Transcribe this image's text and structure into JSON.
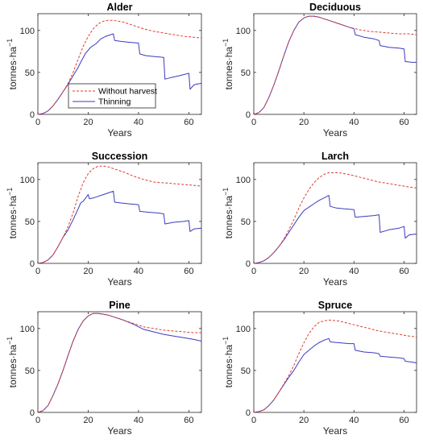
{
  "figure": {
    "colors": {
      "without_harvest": "#e03c31",
      "thinning": "#3b3bbf",
      "axes": "#262626"
    },
    "legend": {
      "panel_index": 0,
      "entries": [
        {
          "label": "Without harvest",
          "series": "without_harvest",
          "style": "dashed"
        },
        {
          "label": "Thinning",
          "series": "thinning",
          "style": "solid"
        }
      ]
    }
  },
  "chart_data": [
    {
      "type": "line",
      "title": "Alder",
      "xlabel": "Years",
      "ylabel": "tonnes·ha",
      "ylabel_sup": "−1",
      "xlim": [
        0,
        65
      ],
      "ylim": [
        0,
        120
      ],
      "xticks": [
        0,
        20,
        40,
        60
      ],
      "yticks": [
        0,
        50,
        100
      ],
      "series": [
        {
          "name": "Without harvest",
          "key": "without_harvest",
          "style": "dashed",
          "x": [
            0,
            2,
            4,
            6,
            8,
            10,
            12,
            14,
            16,
            18,
            20,
            22,
            24,
            26,
            28,
            30,
            34,
            38,
            42,
            46,
            50,
            54,
            58,
            62,
            65
          ],
          "y": [
            0,
            1,
            4,
            10,
            18,
            27,
            37,
            50,
            66,
            81,
            93,
            102,
            108,
            111,
            112,
            112,
            110,
            106,
            102,
            99,
            97,
            95,
            93,
            92,
            91
          ]
        },
        {
          "name": "Thinning",
          "key": "thinning",
          "style": "solid",
          "x": [
            0,
            2,
            4,
            6,
            8,
            10,
            12,
            14,
            16,
            17,
            19,
            21,
            23,
            25,
            27,
            29,
            30,
            30.5,
            33,
            36,
            40,
            40.5,
            43,
            46,
            50,
            50.5,
            53,
            56,
            60,
            60.5,
            62,
            63,
            65
          ],
          "y": [
            0,
            1,
            4,
            10,
            18,
            27,
            36,
            46,
            56,
            62,
            73,
            80,
            84,
            90,
            93,
            95,
            96,
            88,
            87,
            86,
            85,
            72,
            70,
            69,
            68,
            42,
            44,
            46,
            49,
            30,
            35,
            36,
            37
          ]
        }
      ]
    },
    {
      "type": "line",
      "title": "Deciduous",
      "xlabel": "Years",
      "ylabel": "tonnes·ha",
      "ylabel_sup": "−1",
      "xlim": [
        0,
        65
      ],
      "ylim": [
        0,
        120
      ],
      "xticks": [
        0,
        20,
        40,
        60
      ],
      "yticks": [
        0,
        50,
        100
      ],
      "series": [
        {
          "name": "Without harvest",
          "key": "without_harvest",
          "style": "dashed",
          "x": [
            0,
            2,
            4,
            6,
            8,
            10,
            12,
            14,
            16,
            18,
            20,
            22,
            24,
            26,
            28,
            30,
            34,
            38,
            42,
            46,
            50,
            54,
            58,
            62,
            65
          ],
          "y": [
            0,
            2,
            8,
            20,
            35,
            52,
            70,
            87,
            100,
            110,
            115,
            117,
            117,
            116,
            114,
            112,
            108,
            104,
            101,
            99,
            98,
            97,
            96,
            96,
            95
          ]
        },
        {
          "name": "Thinning",
          "key": "thinning",
          "style": "solid",
          "x": [
            0,
            2,
            4,
            6,
            8,
            10,
            12,
            14,
            16,
            18,
            20,
            22,
            24,
            26,
            28,
            30,
            34,
            38,
            40,
            40.5,
            44,
            48,
            50,
            50.5,
            54,
            58,
            60,
            60.5,
            63,
            65
          ],
          "y": [
            0,
            2,
            8,
            20,
            35,
            52,
            70,
            87,
            100,
            110,
            115,
            117,
            117,
            116,
            114,
            112,
            108,
            104,
            102,
            95,
            92,
            90,
            88,
            82,
            80,
            79,
            78,
            63,
            62,
            62
          ]
        }
      ]
    },
    {
      "type": "line",
      "title": "Succession",
      "xlabel": "Years",
      "ylabel": "tonnes·ha",
      "ylabel_sup": "−1",
      "xlim": [
        0,
        65
      ],
      "ylim": [
        0,
        120
      ],
      "xticks": [
        0,
        20,
        40,
        60
      ],
      "yticks": [
        0,
        50,
        100
      ],
      "series": [
        {
          "name": "Without harvest",
          "key": "without_harvest",
          "style": "dashed",
          "x": [
            0,
            2,
            4,
            6,
            8,
            10,
            12,
            14,
            16,
            18,
            20,
            22,
            24,
            26,
            28,
            30,
            34,
            38,
            42,
            46,
            50,
            54,
            58,
            62,
            65
          ],
          "y": [
            0,
            1,
            4,
            10,
            20,
            31,
            44,
            60,
            80,
            96,
            107,
            113,
            116,
            116,
            115,
            113,
            109,
            104,
            100,
            97,
            96,
            95,
            94,
            93,
            92
          ]
        },
        {
          "name": "Thinning",
          "key": "thinning",
          "style": "solid",
          "x": [
            0,
            2,
            4,
            6,
            8,
            10,
            12,
            14,
            16,
            17,
            18,
            19,
            20,
            20.5,
            22,
            24,
            26,
            28,
            30,
            30.5,
            33,
            36,
            40,
            40.5,
            44,
            48,
            50,
            50.5,
            54,
            58,
            60,
            60.5,
            62,
            65
          ],
          "y": [
            0,
            1,
            4,
            10,
            20,
            31,
            40,
            52,
            65,
            72,
            74,
            78,
            82,
            77,
            78,
            80,
            82,
            84,
            86,
            73,
            72,
            71,
            70,
            62,
            61,
            60,
            59,
            47,
            49,
            50,
            51,
            38,
            41,
            42
          ]
        }
      ]
    },
    {
      "type": "line",
      "title": "Larch",
      "xlabel": "Years",
      "ylabel": "tonnes·ha",
      "ylabel_sup": "−1",
      "xlim": [
        0,
        65
      ],
      "ylim": [
        0,
        120
      ],
      "xticks": [
        0,
        20,
        40,
        60
      ],
      "yticks": [
        0,
        50,
        100
      ],
      "series": [
        {
          "name": "Without harvest",
          "key": "without_harvest",
          "style": "dashed",
          "x": [
            0,
            2,
            4,
            6,
            8,
            10,
            12,
            14,
            16,
            18,
            20,
            22,
            24,
            26,
            28,
            30,
            34,
            38,
            42,
            46,
            50,
            54,
            58,
            62,
            65
          ],
          "y": [
            0,
            1,
            3,
            7,
            13,
            20,
            29,
            40,
            52,
            66,
            78,
            88,
            96,
            102,
            106,
            108,
            108,
            106,
            103,
            100,
            97,
            95,
            93,
            91,
            90
          ]
        },
        {
          "name": "Thinning",
          "key": "thinning",
          "style": "solid",
          "x": [
            0,
            2,
            4,
            6,
            8,
            10,
            12,
            14,
            16,
            18,
            20,
            22,
            24,
            26,
            28,
            30,
            30.5,
            33,
            36,
            40,
            40.5,
            44,
            48,
            50,
            50.5,
            54,
            58,
            60,
            60.5,
            62,
            65
          ],
          "y": [
            0,
            1,
            3,
            7,
            13,
            20,
            28,
            37,
            46,
            55,
            63,
            67,
            71,
            75,
            78,
            81,
            68,
            66,
            65,
            64,
            55,
            56,
            57,
            58,
            37,
            40,
            42,
            44,
            30,
            34,
            35
          ]
        }
      ]
    },
    {
      "type": "line",
      "title": "Pine",
      "xlabel": "Years",
      "ylabel": "tonnes·ha",
      "ylabel_sup": "−1",
      "xlim": [
        0,
        65
      ],
      "ylim": [
        0,
        120
      ],
      "xticks": [
        0,
        20,
        40,
        60
      ],
      "yticks": [
        0,
        50,
        100
      ],
      "series": [
        {
          "name": "Without harvest",
          "key": "without_harvest",
          "style": "dashed",
          "x": [
            0,
            2,
            4,
            6,
            8,
            10,
            12,
            14,
            16,
            18,
            20,
            22,
            24,
            26,
            28,
            30,
            34,
            38,
            42,
            46,
            50,
            54,
            58,
            62,
            65
          ],
          "y": [
            0,
            2,
            8,
            20,
            34,
            50,
            68,
            85,
            99,
            109,
            115,
            118,
            118,
            117,
            116,
            114,
            110,
            106,
            102,
            100,
            98,
            97,
            96,
            95,
            95
          ]
        },
        {
          "name": "Thinning",
          "key": "thinning",
          "style": "solid",
          "x": [
            0,
            2,
            4,
            6,
            8,
            10,
            12,
            14,
            16,
            18,
            20,
            22,
            24,
            26,
            28,
            30,
            34,
            38,
            42,
            46,
            50,
            54,
            58,
            62,
            65
          ],
          "y": [
            0,
            2,
            8,
            20,
            34,
            50,
            68,
            85,
            99,
            109,
            115,
            118,
            118,
            117,
            116,
            114,
            110,
            105,
            99,
            96,
            93,
            91,
            89,
            87,
            85
          ]
        }
      ]
    },
    {
      "type": "line",
      "title": "Spruce",
      "xlabel": "Years",
      "ylabel": "tonnes·ha",
      "ylabel_sup": "−1",
      "xlim": [
        0,
        65
      ],
      "ylim": [
        0,
        120
      ],
      "xticks": [
        0,
        20,
        40,
        60
      ],
      "yticks": [
        0,
        50,
        100
      ],
      "series": [
        {
          "name": "Without harvest",
          "key": "without_harvest",
          "style": "dashed",
          "x": [
            0,
            2,
            4,
            6,
            8,
            10,
            12,
            14,
            16,
            18,
            20,
            22,
            24,
            26,
            28,
            30,
            34,
            38,
            42,
            46,
            50,
            54,
            58,
            62,
            65
          ],
          "y": [
            0,
            1,
            3,
            8,
            15,
            24,
            34,
            44,
            56,
            70,
            83,
            94,
            102,
            107,
            109,
            110,
            109,
            106,
            103,
            100,
            97,
            95,
            93,
            91,
            90
          ]
        },
        {
          "name": "Thinning",
          "key": "thinning",
          "style": "solid",
          "x": [
            0,
            2,
            4,
            6,
            8,
            10,
            12,
            14,
            16,
            17,
            18,
            20,
            22,
            24,
            26,
            28,
            30,
            30.5,
            34,
            38,
            40,
            40.5,
            44,
            48,
            50,
            50.5,
            54,
            58,
            60,
            60.5,
            63,
            65
          ],
          "y": [
            0,
            1,
            3,
            8,
            15,
            24,
            33,
            42,
            50,
            55,
            60,
            69,
            74,
            79,
            83,
            86,
            88,
            84,
            83,
            82,
            82,
            74,
            72,
            71,
            70,
            67,
            66,
            65,
            64,
            61,
            60,
            59
          ]
        }
      ]
    }
  ]
}
